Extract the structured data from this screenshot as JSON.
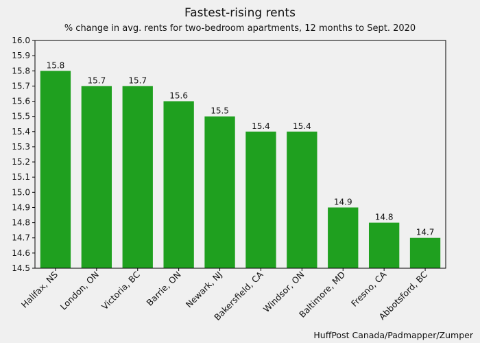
{
  "chart_data": {
    "type": "bar",
    "title": "Fastest-rising rents",
    "subtitle": "% change in avg. rents for two-bedroom apartments, 12 months to Sept. 2020",
    "xlabel": "",
    "ylabel": "",
    "categories": [
      "Halifax, NS",
      "London, ON",
      "Victoria, BC",
      "Barrie, ON",
      "Newark, NJ",
      "Bakersfield, CA",
      "Windsor, ON",
      "Baltimore, MD",
      "Fresno, CA",
      "Abbotsford, BC"
    ],
    "values": [
      15.8,
      15.7,
      15.7,
      15.6,
      15.5,
      15.4,
      15.4,
      14.9,
      14.8,
      14.7
    ],
    "ylim": [
      14.5,
      16.0
    ],
    "yticks": [
      "14.5",
      "14.6",
      "14.7",
      "14.8",
      "14.9",
      "15.0",
      "15.1",
      "15.2",
      "15.3",
      "15.4",
      "15.5",
      "15.6",
      "15.7",
      "15.8",
      "15.9",
      "16.0"
    ],
    "grid": false,
    "bar_color": "#1fa01f",
    "source": "HuffPost Canada/Padmapper/Zumper"
  }
}
